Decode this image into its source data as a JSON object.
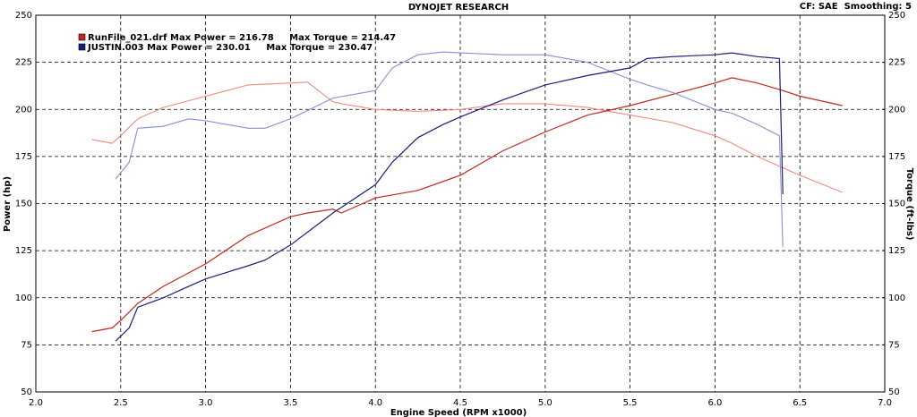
{
  "chart_data": {
    "type": "line",
    "title": "DYNOJET RESEARCH",
    "subtitle": "CF: SAE  Smoothing: 5",
    "x_label": "Engine Speed (RPM x1000)",
    "y_label": "Power (hp)",
    "y2_label": "Torque (ft-lbs)",
    "xlim": [
      2.0,
      7.0
    ],
    "xticks": [
      {
        "value": 2,
        "label": "2.0"
      },
      2.5,
      {
        "value": 3,
        "label": "3.0"
      },
      3.5,
      {
        "value": 4,
        "label": "4.0"
      },
      4.5,
      {
        "value": 5,
        "label": "5.0"
      },
      5.5,
      {
        "value": 6,
        "label": "6.0"
      },
      6.5,
      {
        "value": 7,
        "label": "7.0"
      }
    ],
    "ylim": [
      50,
      250
    ],
    "yticks": [
      50,
      75,
      100,
      125,
      150,
      175,
      200,
      225,
      250
    ],
    "y2lim": [
      50,
      250
    ],
    "y2ticks": [
      50,
      75,
      100,
      125,
      150,
      175,
      200,
      225,
      250
    ],
    "grid": true,
    "series": [
      {
        "name": "RunFile_021.drf Max Power = 216.78     Max Torque = 214.47",
        "color": "#c0281e",
        "torque_color": "#f08a80",
        "x": [
          2.33,
          2.45,
          2.5,
          2.6,
          2.75,
          3.0,
          3.25,
          3.5,
          3.6,
          3.75,
          3.8,
          4.0,
          4.25,
          4.5,
          4.75,
          5.0,
          5.25,
          5.5,
          5.75,
          6.0,
          6.1,
          6.25,
          6.4,
          6.5,
          6.75
        ],
        "values": [
          82,
          84,
          88,
          97,
          106,
          118,
          133,
          143,
          145,
          147,
          145,
          153,
          157,
          165,
          178,
          188,
          197,
          202,
          208,
          214,
          216.78,
          214,
          210,
          207,
          202
        ],
        "torque_values": [
          184,
          182,
          186,
          195,
          201,
          207,
          213,
          214,
          214.47,
          204,
          203,
          200,
          199,
          200,
          203,
          203,
          201,
          197,
          193,
          186,
          182,
          175,
          169,
          165,
          156
        ]
      },
      {
        "name": "JUSTIN.003 Max Power = 230.01     Max Torque = 230.47",
        "color": "#1a1f7a",
        "torque_color": "#8a8ed0",
        "x": [
          2.47,
          2.55,
          2.6,
          2.75,
          2.9,
          3.0,
          3.25,
          3.35,
          3.5,
          3.75,
          4.0,
          4.1,
          4.25,
          4.4,
          4.5,
          4.75,
          5.0,
          5.25,
          5.5,
          5.6,
          5.75,
          6.0,
          6.1,
          6.25,
          6.38,
          6.4
        ],
        "values": [
          77,
          84,
          95,
          100,
          106,
          110,
          117,
          120,
          128,
          145,
          160,
          172,
          185,
          192,
          196,
          205,
          213,
          218,
          222,
          227,
          228,
          229,
          230.01,
          228,
          227,
          155
        ],
        "torque_values": [
          163,
          172,
          190,
          191,
          195,
          194,
          190,
          190,
          195,
          206,
          210,
          222,
          229,
          230.47,
          230,
          229,
          229,
          225,
          216,
          213,
          209,
          200,
          198,
          192,
          186,
          127
        ]
      }
    ]
  }
}
